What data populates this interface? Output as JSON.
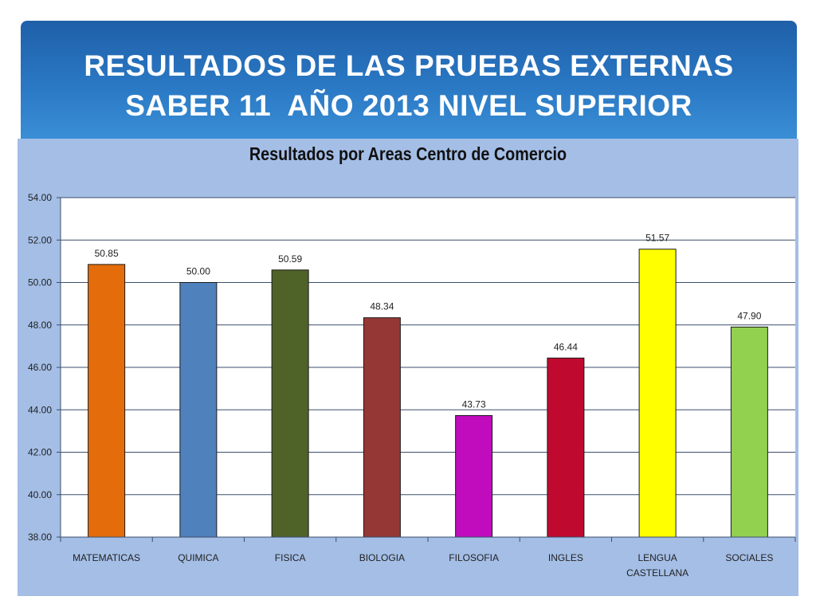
{
  "slide": {
    "title_line1": "RESULTADOS DE LAS PRUEBAS EXTERNAS",
    "title_line2": "SABER 11  AÑO 2013 NIVEL SUPERIOR"
  },
  "colors": {
    "banner": "#2a78c4",
    "panel": "#a4bee6",
    "plot_bg": "#ffffff",
    "grid": "#3c4f6b"
  },
  "chart_data": {
    "type": "bar",
    "title": "Resultados por Areas Centro de Comercio",
    "xlabel": "",
    "ylabel": "",
    "ylim": [
      38,
      54
    ],
    "y_ticks": [
      "38.00",
      "40.00",
      "42.00",
      "44.00",
      "46.00",
      "48.00",
      "50.00",
      "52.00",
      "54.00"
    ],
    "grid": true,
    "legend": "none",
    "categories": [
      "MATEMATICAS",
      "QUIMICA",
      "FISICA",
      "BIOLOGIA",
      "FILOSOFIA",
      "INGLES",
      "LENGUA CASTELLANA",
      "SOCIALES"
    ],
    "values": [
      50.85,
      50.0,
      50.59,
      48.34,
      43.73,
      46.44,
      51.57,
      47.9
    ],
    "data_labels": [
      "50.85",
      "50.00",
      "50.59",
      "48.34",
      "43.73",
      "46.44",
      "51.57",
      "47.90"
    ],
    "bar_colors": [
      "#e46c0a",
      "#4f81bd",
      "#4f6228",
      "#953735",
      "#c00cbd",
      "#c0092f",
      "#ffff00",
      "#92d050"
    ]
  }
}
